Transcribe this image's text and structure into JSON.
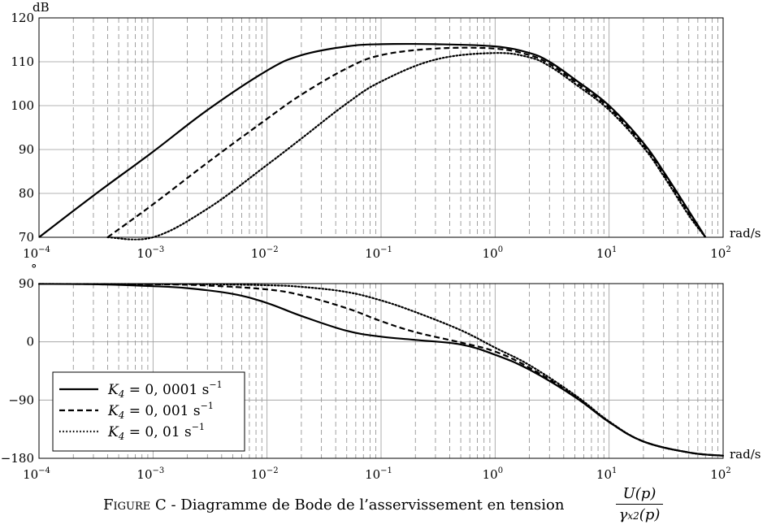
{
  "chart_data": [
    {
      "type": "line",
      "xscale": "log",
      "xlim": [
        0.0001,
        100
      ],
      "ylim": [
        70,
        120
      ],
      "ylabel": "dB",
      "xlabel": "rad/s",
      "y_ticks": [
        "70",
        "80",
        "90",
        "100",
        "110",
        "120"
      ],
      "x_tick_exponents": [
        "−4",
        "−3",
        "−2",
        "−1",
        "0",
        "1",
        "2"
      ],
      "grid": true,
      "series": [
        {
          "name": "K4 = 0,0001 s−1",
          "style": "solid",
          "x": [
            0.0001,
            0.0003,
            0.001,
            0.003,
            0.01,
            0.02,
            0.05,
            0.1,
            0.3,
            1,
            2,
            3,
            5,
            10,
            20,
            30,
            50,
            70
          ],
          "y": [
            70,
            79.5,
            89.5,
            99,
            108,
            111.5,
            113.5,
            114,
            114,
            113.5,
            112,
            110,
            106,
            100,
            91.5,
            85,
            76,
            70
          ]
        },
        {
          "name": "K4 = 0,001 s−1",
          "style": "dashed",
          "x": [
            0.0004,
            0.001,
            0.003,
            0.01,
            0.02,
            0.05,
            0.1,
            0.3,
            1,
            2,
            3,
            5,
            10,
            20,
            30,
            50,
            70
          ],
          "y": [
            70,
            77.5,
            87,
            97,
            102.5,
            108.5,
            111.5,
            113,
            113,
            111.5,
            109.5,
            105.5,
            99.5,
            91,
            84.5,
            75.5,
            70
          ]
        },
        {
          "name": "K4 = 0,01 s−1",
          "style": "dotted",
          "x": [
            0.0004,
            0.001,
            0.003,
            0.01,
            0.02,
            0.05,
            0.1,
            0.3,
            1,
            2,
            3,
            5,
            10,
            20,
            30,
            50,
            70
          ],
          "y": [
            70,
            70,
            76.5,
            86.5,
            92.5,
            100.5,
            105.5,
            110.5,
            112,
            111,
            109,
            105,
            99,
            90.5,
            84,
            75,
            70
          ]
        }
      ]
    },
    {
      "type": "line",
      "xscale": "log",
      "xlim": [
        0.0001,
        100
      ],
      "ylim": [
        -180,
        90
      ],
      "ylabel": "°",
      "xlabel": "rad/s",
      "y_ticks": [
        "90",
        "0",
        "−90",
        "−180"
      ],
      "x_tick_exponents": [
        "−4",
        "−3",
        "−2",
        "−1",
        "0",
        "1",
        "2"
      ],
      "grid": true,
      "legend": "bottom-left",
      "series": [
        {
          "name": "K4 = 0,0001 s−1",
          "style": "solid",
          "x": [
            0.0001,
            0.0003,
            0.001,
            0.002,
            0.005,
            0.01,
            0.02,
            0.05,
            0.1,
            0.2,
            0.5,
            1,
            2,
            5,
            10,
            20,
            50,
            100
          ],
          "y": [
            89.5,
            89,
            86,
            83,
            74,
            60,
            40,
            17,
            8,
            3,
            -4,
            -20,
            -43,
            -85,
            -124,
            -154,
            -171,
            -176
          ]
        },
        {
          "name": "K4 = 0,001 s−1",
          "style": "dashed",
          "x": [
            0.0001,
            0.001,
            0.003,
            0.01,
            0.02,
            0.05,
            0.1,
            0.2,
            0.5,
            1,
            2,
            5,
            10,
            20,
            50,
            100
          ],
          "y": [
            89.5,
            89,
            87,
            81,
            72,
            52,
            32,
            15,
            -1,
            -15,
            -40,
            -84,
            -124,
            -154,
            -171,
            -176
          ]
        },
        {
          "name": "K4 = 0,01 s−1",
          "style": "dotted",
          "x": [
            0.0001,
            0.001,
            0.003,
            0.01,
            0.02,
            0.05,
            0.1,
            0.2,
            0.5,
            1,
            2,
            5,
            10,
            20,
            50,
            100
          ],
          "y": [
            89.5,
            89.3,
            89,
            87.5,
            85,
            77,
            64,
            46,
            18,
            -9,
            -36,
            -82,
            -123,
            -154,
            -171,
            -176
          ]
        }
      ]
    }
  ],
  "legend": {
    "entries": [
      {
        "lhs": "K",
        "sub": "4",
        "rhs": " = 0, 0001 s",
        "sup": "−1"
      },
      {
        "lhs": "K",
        "sub": "4",
        "rhs": " = 0, 001 s",
        "sup": "−1"
      },
      {
        "lhs": "K",
        "sub": "4",
        "rhs": " = 0, 01 s",
        "sup": "−1"
      }
    ]
  },
  "caption": {
    "figure_word": "Figure C",
    "text": " - Diagramme de Bode de l’asservissement en tension ",
    "numerator": "U(p)",
    "denominator_symbol": "γ",
    "denominator_sub": "x2",
    "denominator_arg": "(p)"
  }
}
